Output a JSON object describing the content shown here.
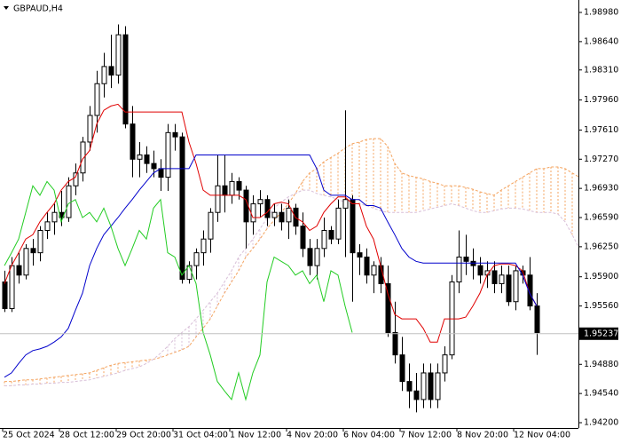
{
  "chart_data": {
    "type": "candlestick",
    "title": "GBPAUD,H4",
    "categories": [
      "25 Oct 2024",
      null,
      null,
      null,
      null,
      null,
      null,
      null,
      "28 Oct 12:00",
      null,
      null,
      null,
      null,
      null,
      null,
      null,
      "29 Oct 20:00",
      null,
      null,
      null,
      null,
      null,
      null,
      null,
      "31 Oct 04:00",
      null,
      null,
      null,
      null,
      null,
      null,
      null,
      "1 Nov 12:00",
      null,
      null,
      null,
      null,
      null,
      null,
      null,
      "4 Nov 20:00",
      null,
      null,
      null,
      null,
      null,
      null,
      null,
      "6 Nov 04:00",
      null,
      null,
      null,
      null,
      null,
      null,
      null,
      "7 Nov 12:00",
      null,
      null,
      null,
      null,
      null,
      null,
      null,
      "8 Nov 20:00",
      null,
      null,
      null,
      null,
      null,
      null,
      null,
      "12 Nov 04:00",
      null,
      null,
      null,
      null,
      null,
      null,
      null,
      null,
      null
    ],
    "open": [
      1.9584,
      1.9553,
      1.9603,
      1.9592,
      1.9623,
      1.9618,
      1.9644,
      1.9654,
      1.9665,
      1.9659,
      1.9696,
      1.9711,
      1.9747,
      1.9778,
      1.9815,
      1.9835,
      1.9825,
      1.9872,
      1.9768,
      1.9727,
      1.9732,
      1.9722,
      1.9716,
      1.9706,
      1.9758,
      1.9753,
      1.9587,
      1.9603,
      1.9618,
      1.9634,
      1.9665,
      1.9696,
      1.9685,
      1.9701,
      1.9691,
      1.9654,
      1.9675,
      1.968,
      1.9659,
      1.9665,
      1.9654,
      1.967,
      1.9649,
      1.9623,
      1.9603,
      1.9623,
      1.9644,
      1.9634,
      1.967,
      1.968,
      1.9618,
      1.9613,
      1.9592,
      1.9603,
      1.9582,
      1.9525,
      1.9499,
      1.9468,
      1.9457,
      1.9447,
      1.9478,
      1.9447,
      1.9478,
      1.9499,
      1.9584,
      1.9613,
      1.9608,
      1.9603,
      1.9592,
      1.9597,
      1.9582,
      1.9592,
      1.9561,
      1.9597,
      1.9592,
      1.9556,
      null,
      null,
      null,
      null,
      null,
      null
    ],
    "high": [
      1.9597,
      1.9613,
      1.9618,
      1.9628,
      1.9634,
      1.9649,
      1.9665,
      1.9675,
      1.969,
      1.9706,
      1.9722,
      1.9753,
      1.9789,
      1.983,
      1.9851,
      1.9872,
      1.9884,
      1.9882,
      1.9789,
      1.9747,
      1.9742,
      1.9737,
      1.9727,
      1.9768,
      1.9768,
      1.9758,
      1.9608,
      1.9623,
      1.9644,
      1.967,
      1.9732,
      1.9732,
      1.9711,
      1.9706,
      1.9696,
      1.9685,
      1.9691,
      1.9685,
      1.9675,
      1.9675,
      1.968,
      1.9675,
      1.9665,
      1.9634,
      1.9634,
      1.9659,
      1.9649,
      1.968,
      1.9784,
      1.9685,
      1.9628,
      1.9623,
      1.9608,
      1.9613,
      1.9603,
      1.9561,
      1.952,
      1.9489,
      1.9478,
      1.9489,
      1.9489,
      1.9489,
      1.9509,
      1.9592,
      1.9644,
      1.9639,
      1.9623,
      1.9613,
      1.9608,
      1.9608,
      1.9603,
      1.9603,
      1.9603,
      1.9603,
      1.9613,
      1.9571,
      null,
      null,
      null,
      null,
      null,
      null
    ],
    "low": [
      1.9549,
      1.9549,
      1.9582,
      1.9587,
      1.9603,
      1.9608,
      1.9634,
      1.9639,
      1.9649,
      1.9654,
      1.9685,
      1.9701,
      1.9737,
      1.9758,
      1.9799,
      1.981,
      1.9815,
      1.9763,
      1.9706,
      1.9706,
      1.9711,
      1.9706,
      1.969,
      1.969,
      1.9737,
      1.9582,
      1.9582,
      1.9587,
      1.9603,
      1.9618,
      1.9654,
      1.9665,
      1.9675,
      1.968,
      1.9623,
      1.9639,
      1.9659,
      1.9649,
      1.9649,
      1.9644,
      1.9634,
      1.9639,
      1.9613,
      1.9592,
      1.9587,
      1.9613,
      1.9628,
      1.9628,
      1.9613,
      1.9561,
      1.9592,
      1.9582,
      1.9571,
      1.9571,
      1.952,
      1.9489,
      1.9457,
      1.9437,
      1.9432,
      1.9437,
      1.9437,
      1.9437,
      1.9468,
      1.9494,
      1.9571,
      1.9592,
      1.9587,
      1.9582,
      1.9577,
      1.9571,
      1.9571,
      1.9556,
      1.9551,
      1.9582,
      1.9551,
      1.9499,
      null,
      null,
      null,
      null,
      null,
      null
    ],
    "close": [
      1.9553,
      1.9603,
      1.9592,
      1.9623,
      1.9618,
      1.9644,
      1.9654,
      1.9665,
      1.9659,
      1.9696,
      1.9711,
      1.9747,
      1.9778,
      1.9815,
      1.9835,
      1.9825,
      1.9872,
      1.9768,
      1.9727,
      1.9732,
      1.9722,
      1.9716,
      1.9706,
      1.9758,
      1.9753,
      1.9587,
      1.9603,
      1.9618,
      1.9634,
      1.9665,
      1.9696,
      1.9685,
      1.9701,
      1.9691,
      1.9654,
      1.9675,
      1.968,
      1.9659,
      1.9665,
      1.9654,
      1.967,
      1.9649,
      1.9623,
      1.9603,
      1.9623,
      1.9644,
      1.9634,
      1.967,
      1.968,
      1.9618,
      1.9613,
      1.9592,
      1.9603,
      1.9582,
      1.9525,
      1.9499,
      1.9468,
      1.9457,
      1.9447,
      1.9478,
      1.9447,
      1.9478,
      1.9499,
      1.9584,
      1.9613,
      1.9608,
      1.9603,
      1.9592,
      1.9597,
      1.9582,
      1.9592,
      1.9561,
      1.9597,
      1.9592,
      1.9556,
      1.9525,
      null,
      null,
      null,
      null,
      null,
      null
    ],
    "up_color": "#ffffff",
    "down_color": "#000000",
    "candle_edge": "#000000",
    "tenkan": {
      "color": "#e00000",
      "values": [
        1.9582,
        1.9603,
        1.9618,
        1.9634,
        1.9639,
        1.9654,
        1.9665,
        1.9675,
        1.9691,
        1.9701,
        1.9706,
        1.9727,
        1.9737,
        1.9768,
        1.9784,
        1.9789,
        1.9791,
        1.9782,
        1.9782,
        1.9782,
        1.9782,
        1.9782,
        1.9782,
        1.9782,
        1.9782,
        1.9782,
        1.9747,
        1.9722,
        1.9691,
        1.9685,
        1.9685,
        1.9685,
        1.9685,
        1.9685,
        1.968,
        1.9659,
        1.9659,
        1.9665,
        1.9675,
        1.9677,
        1.9675,
        1.9659,
        1.9654,
        1.9644,
        1.9649,
        1.9665,
        1.9675,
        1.9683,
        1.9683,
        1.9675,
        1.9675,
        1.9649,
        1.9634,
        1.9603,
        1.9571,
        1.9546,
        1.9541,
        1.9541,
        1.9541,
        1.953,
        1.9514,
        1.9514,
        1.9541,
        1.9541,
        1.9541,
        1.9543,
        1.9556,
        1.9571,
        1.9592,
        1.9603,
        1.9605,
        1.9605,
        1.9603,
        1.9597,
        1.9571,
        1.9556,
        null,
        null,
        null,
        null,
        null,
        null
      ]
    },
    "kijun": {
      "color": "#0000cc",
      "values": [
        1.9473,
        1.9478,
        1.9489,
        1.9499,
        1.9504,
        1.9506,
        1.9509,
        1.9514,
        1.952,
        1.953,
        1.9551,
        1.9571,
        1.9603,
        1.9623,
        1.9639,
        1.9649,
        1.9659,
        1.967,
        1.968,
        1.9691,
        1.9701,
        1.9711,
        1.9716,
        1.9716,
        1.9716,
        1.9716,
        1.9716,
        1.9732,
        1.9732,
        1.9732,
        1.9732,
        1.9732,
        1.9732,
        1.9732,
        1.9732,
        1.9732,
        1.9732,
        1.9732,
        1.9732,
        1.9732,
        1.9732,
        1.9732,
        1.9732,
        1.9732,
        1.9716,
        1.9691,
        1.9685,
        1.9685,
        1.9685,
        1.968,
        1.968,
        1.9673,
        1.9673,
        1.967,
        1.9654,
        1.9639,
        1.9623,
        1.9613,
        1.9608,
        1.9606,
        1.9606,
        1.9606,
        1.9606,
        1.9606,
        1.9606,
        1.9606,
        1.9606,
        1.9606,
        1.9606,
        1.9606,
        1.9606,
        1.9606,
        1.9606,
        1.9592,
        1.9571,
        1.9556,
        null,
        null,
        null,
        null,
        null,
        null
      ]
    },
    "chikou_color": "#22cc22",
    "span_a": {
      "color": "#f4a460",
      "values": [
        1.9468,
        1.9468,
        1.9469,
        1.947,
        1.947,
        1.9471,
        1.9472,
        1.9473,
        1.9474,
        1.9475,
        1.9476,
        1.9477,
        1.9478,
        1.9481,
        1.9484,
        1.9487,
        1.9489,
        1.949,
        1.9491,
        1.9492,
        1.9493,
        1.9494,
        1.9496,
        1.9499,
        1.9502,
        1.9505,
        1.9509,
        1.952,
        1.953,
        1.9541,
        1.9556,
        1.9571,
        1.9584,
        1.9597,
        1.9613,
        1.9623,
        1.9634,
        1.9646,
        1.9656,
        1.9665,
        1.9675,
        1.9687,
        1.9701,
        1.9711,
        1.9716,
        1.9724,
        1.9729,
        1.9734,
        1.974,
        1.9745,
        1.9747,
        1.975,
        1.9751,
        1.9751,
        1.9742,
        1.9722,
        1.9711,
        1.9708,
        1.9706,
        1.9704,
        1.9701,
        1.9699,
        1.9696,
        1.9696,
        1.9696,
        1.9694,
        1.9692,
        1.9689,
        1.9687,
        1.9685,
        1.9691,
        1.9696,
        1.9701,
        1.9706,
        1.9711,
        1.9716,
        1.9716,
        1.9718,
        1.9718,
        1.9716,
        1.9711,
        1.9706
      ]
    },
    "span_b": {
      "color": "#d8bfd8",
      "values": [
        1.9463,
        1.9463,
        1.9464,
        1.9464,
        1.9465,
        1.9465,
        1.9466,
        1.9466,
        1.9467,
        1.9467,
        1.9468,
        1.9469,
        1.947,
        1.9472,
        1.9474,
        1.9476,
        1.9478,
        1.9481,
        1.9483,
        1.9485,
        1.9489,
        1.9494,
        1.9501,
        1.9509,
        1.9518,
        1.9525,
        1.9532,
        1.9541,
        1.9551,
        1.9561,
        1.9571,
        1.9584,
        1.9597,
        1.9613,
        1.9623,
        1.9634,
        1.9646,
        1.9658,
        1.967,
        1.9677,
        1.9683,
        1.9687,
        1.9691,
        1.9691,
        1.9687,
        1.9685,
        1.9683,
        1.968,
        1.9677,
        1.9675,
        1.9675,
        1.9673,
        1.967,
        1.9667,
        1.9665,
        1.9665,
        1.9665,
        1.9665,
        1.9665,
        1.9667,
        1.9669,
        1.9671,
        1.9673,
        1.9675,
        1.9673,
        1.967,
        1.9667,
        1.9665,
        1.9665,
        1.9667,
        1.9669,
        1.967,
        1.967,
        1.9669,
        1.9667,
        1.9665,
        1.9665,
        1.9665,
        1.9663,
        1.9654,
        1.9639,
        1.9623
      ]
    },
    "ylim": [
      1.94138,
      1.99125
    ],
    "yticks": [
      {
        "value": 1.9898,
        "label": "1.98980"
      },
      {
        "value": 1.9864,
        "label": "1.98640"
      },
      {
        "value": 1.9831,
        "label": "1.98310"
      },
      {
        "value": 1.9796,
        "label": "1.97960"
      },
      {
        "value": 1.9761,
        "label": "1.97610"
      },
      {
        "value": 1.9727,
        "label": "1.97270"
      },
      {
        "value": 1.9693,
        "label": "1.96930"
      },
      {
        "value": 1.9659,
        "label": "1.96590"
      },
      {
        "value": 1.9625,
        "label": "1.96250"
      },
      {
        "value": 1.959,
        "label": "1.95900"
      },
      {
        "value": 1.9556,
        "label": "1.95560"
      },
      {
        "value": 1.9488,
        "label": "1.94880"
      },
      {
        "value": 1.9454,
        "label": "1.94540"
      },
      {
        "value": 1.942,
        "label": "1.94200"
      }
    ],
    "current_price": 1.95237,
    "grid": false
  }
}
